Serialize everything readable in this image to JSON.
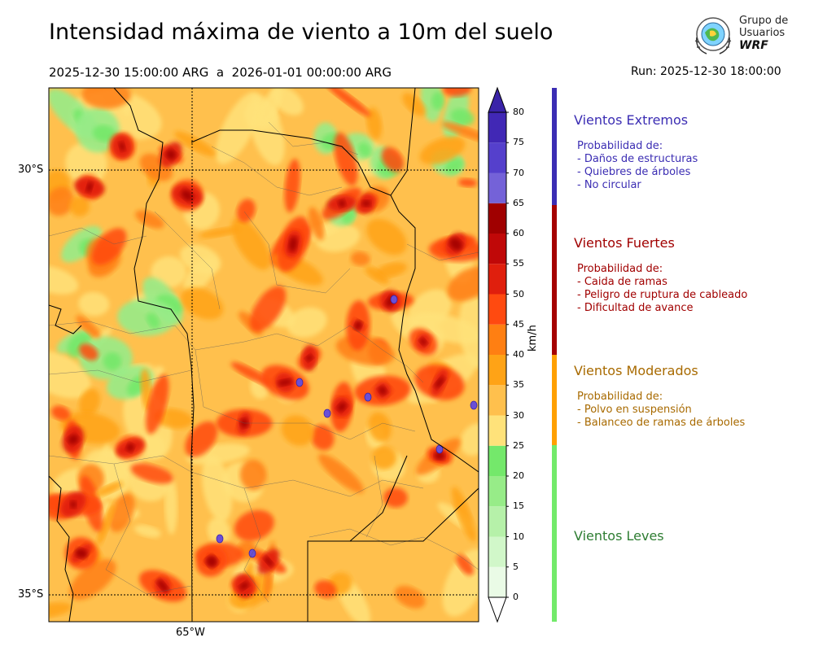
{
  "header": {
    "title": "Intensidad máxima de viento a 10m del suelo",
    "period": "2025-12-30 15:00:00 ARG  a  2026-01-01 00:00:00 ARG",
    "run": "Run: 2025-12-30 18:00:00"
  },
  "logo": {
    "line1": "Grupo de",
    "line2": "Usuarios",
    "line3": "WRF"
  },
  "map": {
    "lat_labels": [
      "30°S",
      "35°S"
    ],
    "lon_labels": [
      "65°W"
    ]
  },
  "colorbar": {
    "unit": "km/h",
    "ticks": [
      "0",
      "5",
      "10",
      "15",
      "20",
      "25",
      "30",
      "35",
      "40",
      "45",
      "50",
      "55",
      "60",
      "65",
      "70",
      "75",
      "80"
    ],
    "colors": [
      "#eafbe6",
      "#d1f7c9",
      "#b6f1a9",
      "#97ec88",
      "#74e86b",
      "#ffe27a",
      "#ffc04d",
      "#ffa316",
      "#ff7f12",
      "#ff4a10",
      "#e01f0d",
      "#c00808",
      "#a00000",
      "#7462d8",
      "#5540cc",
      "#4128b5"
    ]
  },
  "categories": [
    {
      "title": "Vientos Extremos",
      "body": "Probabilidad de:\n- Daños de estructuras\n- Quiebres de árboles\n- No circular",
      "color": "#3b2db3"
    },
    {
      "title": "Vientos Fuertes",
      "body": "Probabilidad de:\n- Caida de ramas\n- Peligro de ruptura de cableado\n- Dificultad de avance",
      "color": "#a10000"
    },
    {
      "title": "Vientos Moderados",
      "body": "Probabilidad de:\n- Polvo en suspensión\n- Balanceo de ramas de árboles",
      "color": "#a86a00"
    },
    {
      "title": "Vientos Leves",
      "body": "",
      "color": "#2e7d32"
    }
  ],
  "category_bar_colors": [
    "#3b2db3",
    "#a50000",
    "#ffa000",
    "#72ea6a"
  ]
}
